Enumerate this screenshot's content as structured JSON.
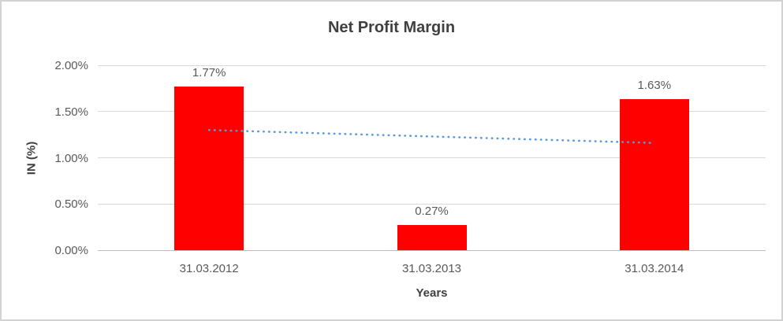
{
  "chart_data": {
    "type": "bar",
    "title": "Net Profit Margin",
    "xlabel": "Years",
    "ylabel": "IN (%)",
    "categories": [
      "31.03.2012",
      "31.03.2013",
      "31.03.2014"
    ],
    "values": [
      1.77,
      0.27,
      1.63
    ],
    "value_labels": [
      "1.77%",
      "0.27%",
      "1.63%"
    ],
    "y_ticks": [
      "2.00%",
      "1.50%",
      "1.00%",
      "0.50%",
      "0.00%"
    ],
    "y_tick_values": [
      2.0,
      1.5,
      1.0,
      0.5,
      0.0
    ],
    "ylim": [
      0,
      2.0
    ],
    "grid": true,
    "legend": false,
    "trendline": {
      "type": "linear",
      "style": "dotted",
      "start_value": 1.3,
      "end_value": 1.16
    }
  },
  "colors": {
    "bar": "#ff0000",
    "trendline": "#5b9bd5",
    "gridline": "#d9d9d9",
    "axis_line": "#bfbfbf",
    "title_text": "#404040",
    "tick_text": "#595959",
    "frame_border": "#d2d2d2"
  }
}
